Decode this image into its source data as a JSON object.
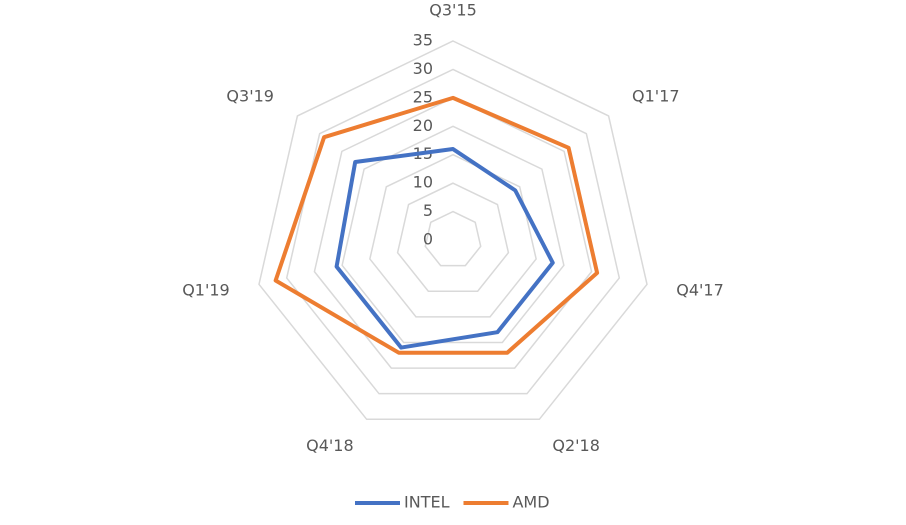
{
  "chart_data": {
    "type": "radar",
    "categories": [
      "Q3'15",
      "Q1'17",
      "Q4'17",
      "Q2'18",
      "Q4'18",
      "Q1'19",
      "Q3'19"
    ],
    "series": [
      {
        "name": "INTEL",
        "color": "#4472c4",
        "values": [
          16,
          14,
          18,
          18,
          21,
          21,
          22
        ]
      },
      {
        "name": "AMD",
        "color": "#ed7d31",
        "values": [
          25,
          26,
          26,
          22,
          22,
          32,
          29
        ]
      }
    ],
    "rlim": [
      0,
      35
    ],
    "rticks": [
      0,
      5,
      10,
      15,
      20,
      25,
      30,
      35
    ],
    "grid": true,
    "legend": "bottom"
  }
}
